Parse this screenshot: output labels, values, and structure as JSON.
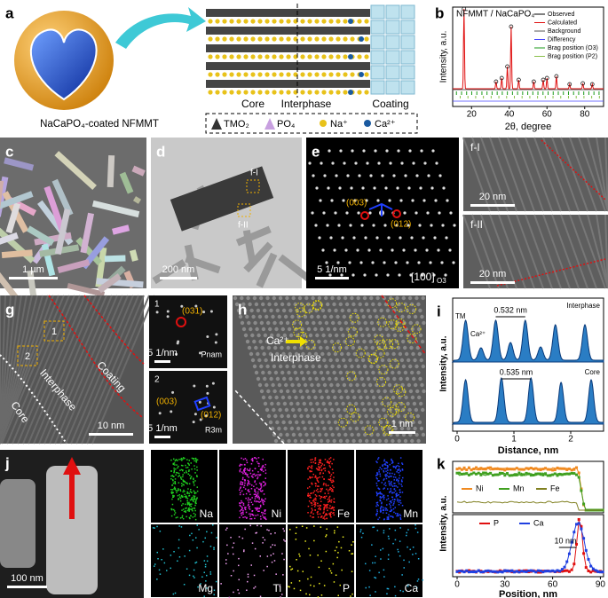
{
  "panels": {
    "a": {
      "label": "a",
      "caption": "NaCaPO₄-coated NFMMT",
      "regions": [
        "Core",
        "Interphase",
        "Coating"
      ],
      "legend": [
        "TMO₂",
        "PO₄",
        "Na⁺",
        "Ca²⁺"
      ]
    },
    "b": {
      "label": "b",
      "title": "NFMMT / NaCaPO₄",
      "legend": [
        "Observed",
        "Calculated",
        "Background",
        "Differency",
        "Brag position (O3)",
        "Brag position (P2)"
      ],
      "ylabel": "Intensity, a.u.",
      "xlabel": "2θ, degree",
      "xticks": [
        "20",
        "40",
        "60",
        "80"
      ]
    },
    "c": {
      "label": "c",
      "scale": "1 µm"
    },
    "d": {
      "label": "d",
      "scale": "200 nm",
      "marks": [
        "f-I",
        "f-II"
      ]
    },
    "e": {
      "label": "e",
      "scale": "5 1/nm",
      "spots": [
        "(003)",
        "(012)"
      ],
      "zone": "[100]",
      "zone_sub": "O3"
    },
    "f": {
      "panes": [
        {
          "label": "f-I",
          "scale": "20 nm"
        },
        {
          "label": "f-II",
          "scale": "20 nm"
        }
      ]
    },
    "g": {
      "label": "g",
      "regions": [
        "Coating",
        "Interphase",
        "Core"
      ],
      "boxes": [
        "1",
        "2"
      ],
      "scale": "10 nm",
      "insets": [
        {
          "label": "1",
          "spot": "(031)",
          "scale": "5 1/nm",
          "phase": "Pnam"
        },
        {
          "label": "2",
          "spots": [
            "(003)",
            "(012)"
          ],
          "scale": "5 1/nm",
          "phase": "R3m"
        }
      ]
    },
    "h": {
      "label": "h",
      "ion": "Ca²⁺",
      "region": "Interphase",
      "scale": "1 nm"
    },
    "i": {
      "label": "i",
      "ylabel": "Intensity, a.u.",
      "xlabel": "Distance, nm",
      "xticks": [
        "0",
        "1",
        "2"
      ],
      "top": {
        "name": "Interphase",
        "tm": "TM",
        "ca": "Ca²⁺",
        "spacing": "0.532 nm"
      },
      "bottom": {
        "name": "Core",
        "spacing": "0.535 nm"
      }
    },
    "j": {
      "label": "j",
      "scale": "100 nm"
    },
    "eds": [
      "Na",
      "Ni",
      "Fe",
      "Mn",
      "Mg",
      "Ti",
      "P",
      "Ca"
    ],
    "k": {
      "label": "k",
      "ylabel": "Intensity, a.u.",
      "xlabel": "Position, nm",
      "xticks": [
        "0",
        "30",
        "60",
        "90"
      ],
      "legend_top": [
        "Ni",
        "Mn",
        "Fe"
      ],
      "legend_bottom": [
        "P",
        "Ca"
      ],
      "gap": "10 nm"
    }
  }
}
